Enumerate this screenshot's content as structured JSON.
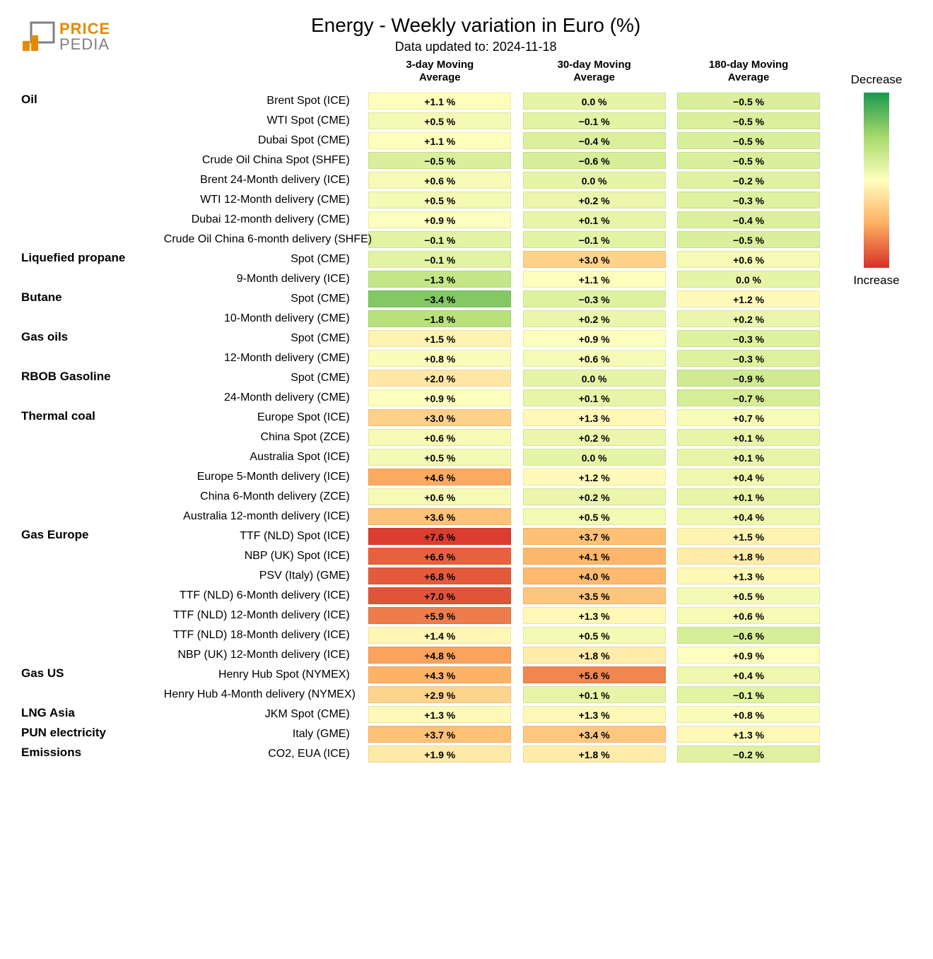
{
  "logo": {
    "line1": "PRICE",
    "line2": "PEDIA"
  },
  "title": "Energy - Weekly variation in Euro (%)",
  "subtitle": "Data updated to: 2024-11-18",
  "columns": [
    "3-day Moving\nAverage",
    "30-day Moving\nAverage",
    "180-day Moving\nAverage"
  ],
  "legend": {
    "top": "Decrease",
    "bottom": "Increase"
  },
  "scale": {
    "min": -6.0,
    "max": 8.0,
    "gradient": [
      "#1a9850",
      "#a6d96a",
      "#ffffbf",
      "#fdae61",
      "#d73027"
    ]
  },
  "categories": [
    {
      "name": "Oil",
      "rows": [
        {
          "label": "Brent Spot (ICE)",
          "values": [
            1.1,
            0.0,
            -0.5
          ]
        },
        {
          "label": "WTI Spot (CME)",
          "values": [
            0.5,
            -0.1,
            -0.5
          ]
        },
        {
          "label": "Dubai Spot (CME)",
          "values": [
            1.1,
            -0.4,
            -0.5
          ]
        },
        {
          "label": "Crude Oil China Spot (SHFE)",
          "values": [
            -0.5,
            -0.6,
            -0.5
          ]
        },
        {
          "label": "Brent 24-Month delivery (ICE)",
          "values": [
            0.6,
            0.0,
            -0.2
          ]
        },
        {
          "label": "WTI 12-Month delivery (CME)",
          "values": [
            0.5,
            0.2,
            -0.3
          ]
        },
        {
          "label": "Dubai 12-month delivery (CME)",
          "values": [
            0.9,
            0.1,
            -0.4
          ]
        },
        {
          "label": "Crude Oil China 6-month delivery (SHFE)",
          "values": [
            -0.1,
            -0.1,
            -0.5
          ]
        }
      ]
    },
    {
      "name": "Liquefied propane",
      "rows": [
        {
          "label": "Spot (CME)",
          "values": [
            -0.1,
            3.0,
            0.6
          ]
        },
        {
          "label": "9-Month delivery (ICE)",
          "values": [
            -1.3,
            1.1,
            0.0
          ]
        }
      ]
    },
    {
      "name": "Butane",
      "rows": [
        {
          "label": "Spot (CME)",
          "values": [
            -3.4,
            -0.3,
            1.2
          ]
        },
        {
          "label": "10-Month delivery (CME)",
          "values": [
            -1.8,
            0.2,
            0.2
          ]
        }
      ]
    },
    {
      "name": "Gas oils",
      "rows": [
        {
          "label": "Spot (CME)",
          "values": [
            1.5,
            0.9,
            -0.3
          ]
        },
        {
          "label": "12-Month delivery (CME)",
          "values": [
            0.8,
            0.6,
            -0.3
          ]
        }
      ]
    },
    {
      "name": "RBOB Gasoline",
      "rows": [
        {
          "label": "Spot (CME)",
          "values": [
            2.0,
            0.0,
            -0.9
          ]
        },
        {
          "label": "24-Month delivery (CME)",
          "values": [
            0.9,
            0.1,
            -0.7
          ]
        }
      ]
    },
    {
      "name": "Thermal coal",
      "rows": [
        {
          "label": "Europe Spot (ICE)",
          "values": [
            3.0,
            1.3,
            0.7
          ]
        },
        {
          "label": "China Spot (ZCE)",
          "values": [
            0.6,
            0.2,
            0.1
          ]
        },
        {
          "label": "Australia Spot (ICE)",
          "values": [
            0.5,
            0.0,
            0.1
          ]
        },
        {
          "label": "Europe 5-Month delivery (ICE)",
          "values": [
            4.6,
            1.2,
            0.4
          ]
        },
        {
          "label": "China 6-Month delivery (ZCE)",
          "values": [
            0.6,
            0.2,
            0.1
          ]
        },
        {
          "label": "Australia 12-month delivery (ICE)",
          "values": [
            3.6,
            0.5,
            0.4
          ]
        }
      ]
    },
    {
      "name": "Gas Europe",
      "rows": [
        {
          "label": "TTF (NLD) Spot (ICE)",
          "values": [
            7.6,
            3.7,
            1.5
          ]
        },
        {
          "label": "NBP (UK) Spot (ICE)",
          "values": [
            6.6,
            4.1,
            1.8
          ]
        },
        {
          "label": "PSV (Italy) (GME)",
          "values": [
            6.8,
            4.0,
            1.3
          ]
        },
        {
          "label": "TTF (NLD) 6-Month delivery (ICE)",
          "values": [
            7.0,
            3.5,
            0.5
          ]
        },
        {
          "label": "TTF (NLD) 12-Month delivery (ICE)",
          "values": [
            5.9,
            1.3,
            0.6
          ]
        },
        {
          "label": "TTF (NLD) 18-Month delivery (ICE)",
          "values": [
            1.4,
            0.5,
            -0.6
          ]
        },
        {
          "label": "NBP (UK) 12-Month delivery (ICE)",
          "values": [
            4.8,
            1.8,
            0.9
          ]
        }
      ]
    },
    {
      "name": "Gas US",
      "rows": [
        {
          "label": "Henry Hub Spot (NYMEX)",
          "values": [
            4.3,
            5.6,
            0.4
          ]
        },
        {
          "label": "Henry Hub 4-Month delivery (NYMEX)",
          "values": [
            2.9,
            0.1,
            -0.1
          ]
        }
      ]
    },
    {
      "name": "LNG Asia",
      "rows": [
        {
          "label": "JKM Spot (CME)",
          "values": [
            1.3,
            1.3,
            0.8
          ]
        }
      ]
    },
    {
      "name": "PUN electricity",
      "rows": [
        {
          "label": "Italy (GME)",
          "values": [
            3.7,
            3.4,
            1.3
          ]
        }
      ]
    },
    {
      "name": "Emissions",
      "rows": [
        {
          "label": "CO2, EUA (ICE)",
          "values": [
            1.9,
            1.8,
            -0.2
          ]
        }
      ]
    }
  ]
}
